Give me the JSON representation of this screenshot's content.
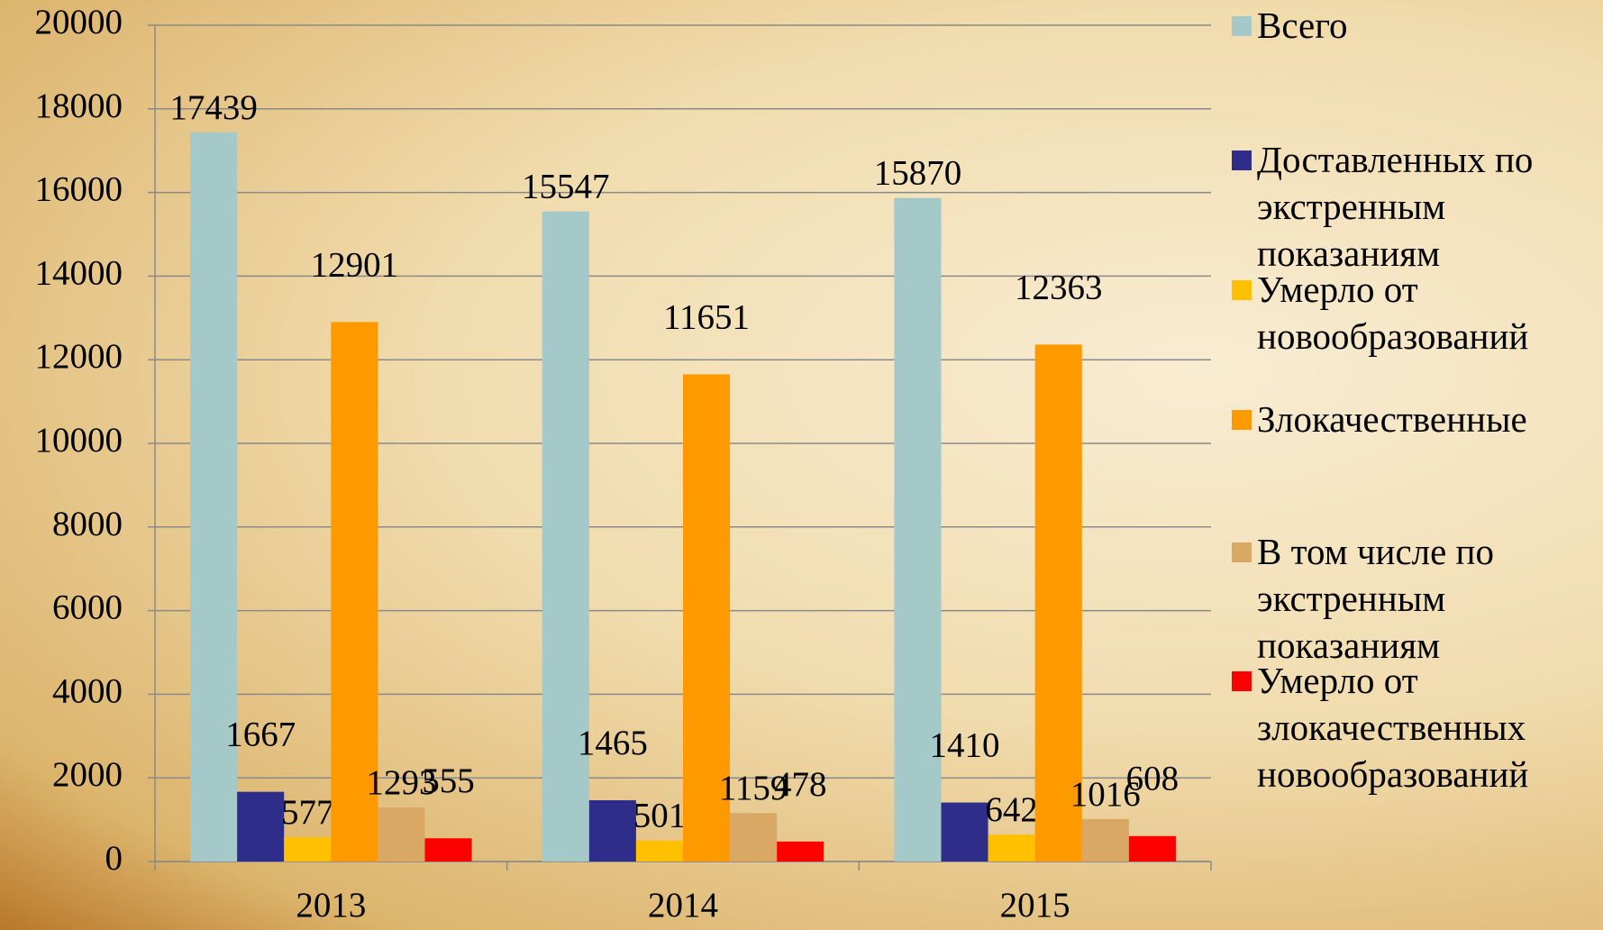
{
  "chart_data": {
    "type": "bar",
    "categories": [
      "2013",
      "2014",
      "2015"
    ],
    "series": [
      {
        "name": "Всего",
        "color": "#a5c8c9",
        "values": [
          17439,
          15547,
          15870
        ]
      },
      {
        "name": "Доставленных по экстренным показаниям",
        "color": "#2e2e8a",
        "values": [
          1667,
          1465,
          1410
        ]
      },
      {
        "name": "Умерло от новообразований",
        "color": "#ffc000",
        "values": [
          577,
          501,
          642
        ]
      },
      {
        "name": "Злокачественные",
        "color": "#ff9900",
        "values": [
          12901,
          11651,
          12363
        ]
      },
      {
        "name": "В том числе по экстренным показаниям",
        "color": "#d9a865",
        "values": [
          1293,
          1159,
          1016
        ]
      },
      {
        "name": "Умерло от злокачественных новообразований",
        "color": "#ff0000",
        "values": [
          555,
          478,
          608
        ]
      }
    ],
    "ylim": [
      0,
      20000
    ],
    "yticks": [
      0,
      2000,
      4000,
      6000,
      8000,
      10000,
      12000,
      14000,
      16000,
      18000,
      20000
    ],
    "grid": true,
    "legend": "right"
  }
}
